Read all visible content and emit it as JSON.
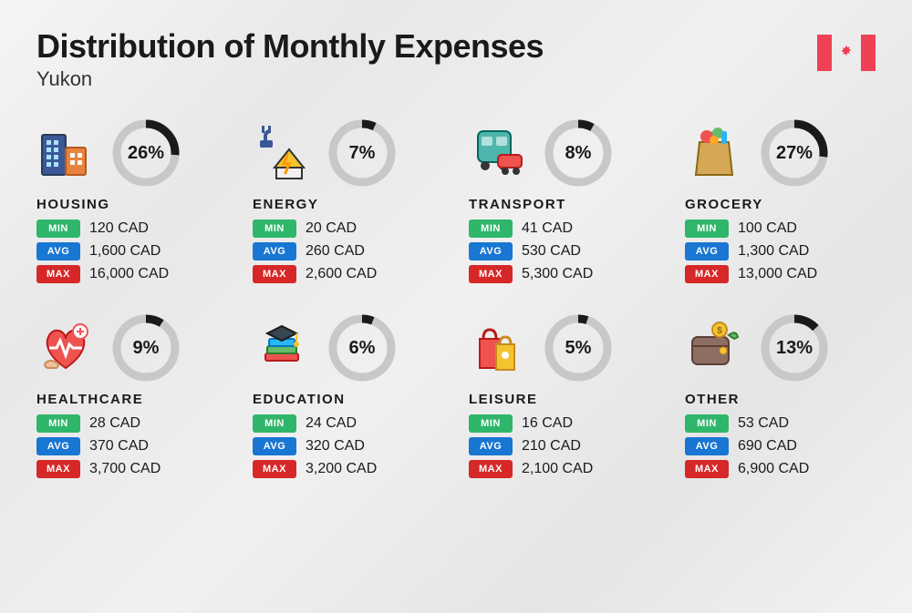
{
  "title": "Distribution of Monthly Expenses",
  "region": "Yukon",
  "colors": {
    "min_badge": "#2fb66a",
    "avg_badge": "#1976d2",
    "max_badge": "#d62828",
    "donut_fg": "#1a1a1a",
    "donut_bg": "#c8c8c8",
    "flag_red": "#ef4056"
  },
  "badges": {
    "min": "MIN",
    "avg": "AVG",
    "max": "MAX"
  },
  "donut": {
    "radius": 32,
    "stroke": 9
  },
  "categories": [
    {
      "key": "housing",
      "label": "HOUSING",
      "percent": 26,
      "percent_label": "26%",
      "min": "120 CAD",
      "avg": "1,600 CAD",
      "max": "16,000 CAD"
    },
    {
      "key": "energy",
      "label": "ENERGY",
      "percent": 7,
      "percent_label": "7%",
      "min": "20 CAD",
      "avg": "260 CAD",
      "max": "2,600 CAD"
    },
    {
      "key": "transport",
      "label": "TRANSPORT",
      "percent": 8,
      "percent_label": "8%",
      "min": "41 CAD",
      "avg": "530 CAD",
      "max": "5,300 CAD"
    },
    {
      "key": "grocery",
      "label": "GROCERY",
      "percent": 27,
      "percent_label": "27%",
      "min": "100 CAD",
      "avg": "1,300 CAD",
      "max": "13,000 CAD"
    },
    {
      "key": "healthcare",
      "label": "HEALTHCARE",
      "percent": 9,
      "percent_label": "9%",
      "min": "28 CAD",
      "avg": "370 CAD",
      "max": "3,700 CAD"
    },
    {
      "key": "education",
      "label": "EDUCATION",
      "percent": 6,
      "percent_label": "6%",
      "min": "24 CAD",
      "avg": "320 CAD",
      "max": "3,200 CAD"
    },
    {
      "key": "leisure",
      "label": "LEISURE",
      "percent": 5,
      "percent_label": "5%",
      "min": "16 CAD",
      "avg": "210 CAD",
      "max": "2,100 CAD"
    },
    {
      "key": "other",
      "label": "OTHER",
      "percent": 13,
      "percent_label": "13%",
      "min": "53 CAD",
      "avg": "690 CAD",
      "max": "6,900 CAD"
    }
  ]
}
